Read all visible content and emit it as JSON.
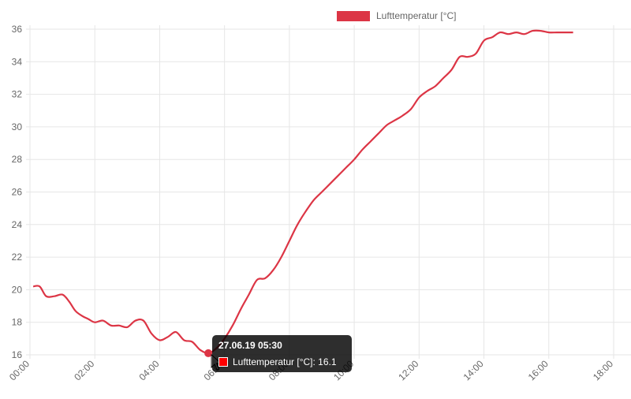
{
  "chart_data": {
    "type": "line",
    "legend_position": "top",
    "grid": true,
    "series": [
      {
        "name": "Lufttemperatur [°C]",
        "color": "#dc3545",
        "x_hours": [
          0.1,
          0.3,
          0.5,
          0.75,
          1.0,
          1.2,
          1.4,
          1.6,
          1.8,
          2.0,
          2.25,
          2.5,
          2.75,
          3.0,
          3.25,
          3.5,
          3.75,
          4.0,
          4.25,
          4.5,
          4.75,
          5.0,
          5.25,
          5.5,
          5.75,
          6.0,
          6.25,
          6.5,
          6.75,
          7.0,
          7.25,
          7.5,
          7.75,
          8.0,
          8.25,
          8.5,
          8.75,
          9.0,
          9.25,
          9.5,
          9.75,
          10.0,
          10.25,
          10.5,
          10.75,
          11.0,
          11.25,
          11.5,
          11.75,
          12.0,
          12.25,
          12.5,
          12.75,
          13.0,
          13.25,
          13.5,
          13.75,
          14.0,
          14.25,
          14.5,
          14.75,
          15.0,
          15.25,
          15.5,
          15.75,
          16.0,
          16.25,
          16.5,
          16.75
        ],
        "values": [
          20.2,
          20.2,
          19.6,
          19.6,
          19.7,
          19.3,
          18.7,
          18.4,
          18.2,
          18.0,
          18.1,
          17.8,
          17.8,
          17.7,
          18.1,
          18.1,
          17.3,
          16.9,
          17.1,
          17.4,
          16.9,
          16.8,
          16.3,
          16.1,
          16.4,
          17.0,
          17.8,
          18.8,
          19.7,
          20.6,
          20.7,
          21.2,
          22.0,
          23.0,
          24.0,
          24.8,
          25.5,
          26.0,
          26.5,
          27.0,
          27.5,
          28.0,
          28.6,
          29.1,
          29.6,
          30.1,
          30.4,
          30.7,
          31.1,
          31.8,
          32.2,
          32.5,
          33.0,
          33.5,
          34.3,
          34.3,
          34.5,
          35.3,
          35.5,
          35.8,
          35.7,
          35.8,
          35.7,
          35.9,
          35.9,
          35.8,
          35.8,
          35.8,
          35.8
        ]
      }
    ],
    "x_ticks": [
      "00:00",
      "02:00",
      "04:00",
      "06:00",
      "08:00",
      "10:00",
      "12:00",
      "14:00",
      "16:00",
      "18:00"
    ],
    "xlim_hours": [
      0,
      18
    ],
    "y_ticks": [
      16,
      18,
      20,
      22,
      24,
      26,
      28,
      30,
      32,
      34,
      36
    ],
    "ylim": [
      16,
      36
    ],
    "tooltip": {
      "title": "27.06.19 05:30",
      "label": "Lufttemperatur [°C]: 16.1",
      "x_hours": 5.5,
      "value": 16.1
    }
  }
}
